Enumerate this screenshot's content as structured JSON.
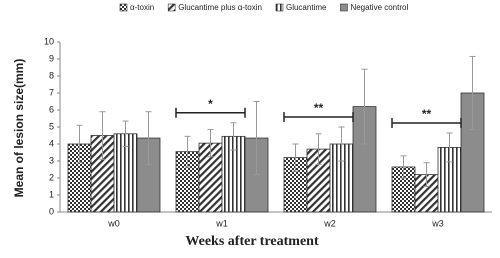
{
  "chart_data": {
    "type": "bar",
    "categories": [
      "w0",
      "w1",
      "w2",
      "w3"
    ],
    "series": [
      {
        "name": "α-toxin",
        "color": "#333333",
        "pattern": "crosshatch",
        "values": [
          4.0,
          3.55,
          3.2,
          2.65
        ],
        "errors": [
          1.1,
          0.9,
          0.8,
          0.65
        ]
      },
      {
        "name": "Glucantime plus α-toxin",
        "color": "#333333",
        "pattern": "diagonal",
        "values": [
          4.5,
          4.05,
          3.7,
          2.2
        ],
        "errors": [
          1.4,
          0.8,
          0.9,
          0.7
        ]
      },
      {
        "name": "Glucantime",
        "color": "#333333",
        "pattern": "vertical",
        "values": [
          4.6,
          4.45,
          4.0,
          3.8
        ],
        "errors": [
          0.75,
          0.8,
          1.0,
          0.85
        ]
      },
      {
        "name": "Negative control",
        "color": "#8c8c8c",
        "pattern": "solid",
        "values": [
          4.35,
          4.35,
          6.2,
          7.0
        ],
        "errors": [
          1.55,
          2.15,
          2.2,
          2.15
        ]
      }
    ],
    "significance": [
      null,
      "*",
      "**",
      "**"
    ],
    "ylim": [
      0,
      10
    ],
    "yticks": [
      0,
      1,
      2,
      3,
      4,
      5,
      6,
      7,
      8,
      9,
      10
    ],
    "xlabel": "Weeks after treatment",
    "ylabel": "Mean of lesion size(mm)",
    "legend": "top"
  }
}
